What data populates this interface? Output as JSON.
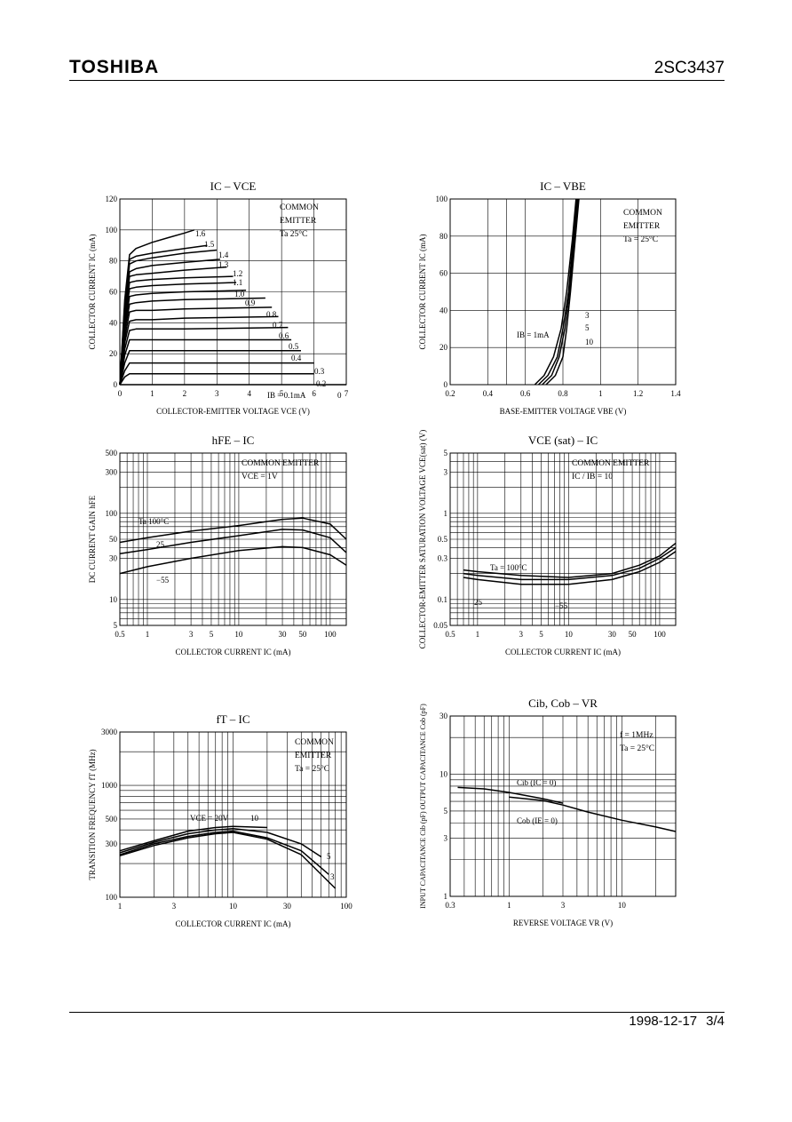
{
  "header": {
    "logo": "TOSHIBA",
    "part_number": "2SC3437"
  },
  "footer": {
    "date": "1998-12-17",
    "page": "3/4"
  },
  "chart_data": [
    {
      "id": "ic_vce",
      "type": "line",
      "title": "IC – VCE",
      "xlabel": "COLLECTOR-EMITTER VOLTAGE   VCE   (V)",
      "ylabel": "COLLECTOR CURRENT   IC   (mA)",
      "xscale": "linear",
      "yscale": "linear",
      "xlim": [
        0,
        7
      ],
      "ylim": [
        0,
        120
      ],
      "xticks": [
        0,
        1,
        2,
        3,
        4,
        5,
        6,
        7
      ],
      "yticks": [
        0,
        20,
        40,
        60,
        80,
        100,
        120
      ],
      "xgrid": [
        1,
        2,
        3,
        4,
        5,
        6
      ],
      "ygrid": [
        20,
        40,
        60,
        80,
        100
      ],
      "annotation": [
        "COMMON",
        "EMITTER",
        "Ta   25°C"
      ],
      "series": [
        {
          "name": "1.6",
          "x": [
            0,
            0.15,
            0.3,
            0.5,
            1,
            1.5,
            2,
            2.3
          ],
          "y": [
            0,
            55,
            84,
            88,
            92,
            95,
            98,
            100
          ]
        },
        {
          "name": "1.5",
          "x": [
            0,
            0.15,
            0.3,
            0.5,
            1,
            2,
            2.7
          ],
          "y": [
            0,
            52,
            81,
            83,
            85,
            88,
            90
          ]
        },
        {
          "name": "1.4",
          "x": [
            0,
            0.15,
            0.3,
            0.5,
            1,
            2,
            3
          ],
          "y": [
            0,
            50,
            78,
            80,
            82,
            85,
            87
          ]
        },
        {
          "name": "1.3",
          "x": [
            0,
            0.15,
            0.3,
            0.5,
            1,
            2,
            3.1
          ],
          "y": [
            0,
            47,
            73,
            75,
            77,
            79,
            81
          ]
        },
        {
          "name": "1.2",
          "x": [
            0,
            0.15,
            0.3,
            0.5,
            1,
            2,
            3.3
          ],
          "y": [
            0,
            45,
            70,
            71,
            72,
            74,
            76
          ]
        },
        {
          "name": "1.1",
          "x": [
            0,
            0.15,
            0.3,
            0.5,
            1,
            2,
            3.5
          ],
          "y": [
            0,
            43,
            66,
            67,
            68,
            69,
            70
          ]
        },
        {
          "name": "1.0",
          "x": [
            0,
            0.15,
            0.3,
            0.5,
            1,
            2,
            3.6
          ],
          "y": [
            0,
            40,
            62,
            63,
            64,
            65,
            66
          ]
        },
        {
          "name": "0.9",
          "x": [
            0,
            0.15,
            0.3,
            0.5,
            1,
            2,
            3.9
          ],
          "y": [
            0,
            37,
            57,
            58,
            59,
            60,
            61
          ]
        },
        {
          "name": "0.8",
          "x": [
            0,
            0.15,
            0.3,
            0.5,
            1,
            2,
            4.5
          ],
          "y": [
            0,
            34,
            52,
            53,
            54,
            55,
            56
          ]
        },
        {
          "name": "0.7",
          "x": [
            0,
            0.15,
            0.3,
            0.5,
            1,
            2,
            4.7
          ],
          "y": [
            0,
            30,
            47,
            48,
            48,
            49,
            50
          ]
        },
        {
          "name": "0.6",
          "x": [
            0,
            0.15,
            0.3,
            0.5,
            1,
            2,
            4.9
          ],
          "y": [
            0,
            27,
            41,
            42,
            42,
            43,
            44
          ]
        },
        {
          "name": "0.5",
          "x": [
            0,
            0.15,
            0.3,
            0.5,
            1,
            2,
            5.2
          ],
          "y": [
            0,
            23,
            35,
            36,
            36,
            36,
            37
          ]
        },
        {
          "name": "0.4",
          "x": [
            0,
            0.15,
            0.3,
            0.5,
            1,
            2,
            5.3
          ],
          "y": [
            0,
            19,
            29,
            29,
            29,
            29,
            29
          ]
        },
        {
          "name": "0.3",
          "x": [
            0,
            0.15,
            0.3,
            0.5,
            1,
            2,
            5.6
          ],
          "y": [
            0,
            14,
            22,
            22,
            22,
            22,
            22
          ]
        },
        {
          "name": "0.2",
          "x": [
            0,
            0.15,
            0.3,
            0.5,
            1,
            2,
            6
          ],
          "y": [
            0,
            9,
            14,
            14,
            14,
            14,
            14
          ]
        },
        {
          "name": "IB = 0.1mA",
          "x": [
            0,
            0.15,
            0.3,
            0.5,
            1,
            2,
            6
          ],
          "y": [
            0,
            5,
            7,
            7,
            7,
            7,
            7
          ]
        },
        {
          "name": "0",
          "x": [
            0,
            7
          ],
          "y": [
            0,
            0
          ]
        }
      ]
    },
    {
      "id": "ic_vbe",
      "type": "line",
      "title": "IC – VBE",
      "xlabel": "BASE-EMITTER VOLTAGE   VBE   (V)",
      "ylabel": "COLLECTOR CURRENT   IC   (mA)",
      "xscale": "linear",
      "yscale": "linear",
      "xlim": [
        0.2,
        1.4
      ],
      "ylim": [
        0,
        100
      ],
      "xticks": [
        0.2,
        0.4,
        0.6,
        0.8,
        1.0,
        1.2,
        1.4
      ],
      "ytick_labels": [
        "0",
        "20",
        "40",
        "60",
        "80",
        "100"
      ],
      "yticks": [
        0,
        20,
        40,
        60,
        80,
        100
      ],
      "xgrid": [
        0.4,
        0.5,
        0.6,
        0.8,
        1.0,
        1.2
      ],
      "ygrid": [
        20,
        40,
        60,
        80
      ],
      "annotation": [
        "COMMON",
        "EMITTER",
        "Ta = 25°C"
      ],
      "series": [
        {
          "name": "IB = 1mA",
          "x": [
            0.65,
            0.7,
            0.75,
            0.79,
            0.82,
            0.85,
            0.87
          ],
          "y": [
            0,
            5,
            15,
            30,
            50,
            78,
            100
          ]
        },
        {
          "name": "3",
          "x": [
            0.67,
            0.72,
            0.77,
            0.8,
            0.83,
            0.855,
            0.875
          ],
          "y": [
            0,
            5,
            15,
            30,
            50,
            78,
            100
          ]
        },
        {
          "name": "5",
          "x": [
            0.69,
            0.74,
            0.78,
            0.81,
            0.835,
            0.86,
            0.88
          ],
          "y": [
            0,
            5,
            15,
            30,
            50,
            78,
            100
          ]
        },
        {
          "name": "10",
          "x": [
            0.71,
            0.76,
            0.8,
            0.82,
            0.84,
            0.865,
            0.885
          ],
          "y": [
            0,
            5,
            15,
            30,
            50,
            78,
            100
          ]
        }
      ]
    },
    {
      "id": "hfe_ic",
      "type": "line",
      "title": "hFE – IC",
      "xlabel": "COLLECTOR CURRENT   IC   (mA)",
      "ylabel": "DC CURRENT GAIN   hFE",
      "xscale": "log",
      "yscale": "log",
      "xlim": [
        0.5,
        150
      ],
      "ylim": [
        5,
        500
      ],
      "xtick_labels": [
        "0.5",
        "1",
        "3",
        "5",
        "10",
        "30",
        "50",
        "100"
      ],
      "xticks": [
        0.5,
        1,
        3,
        5,
        10,
        30,
        50,
        100
      ],
      "ytick_labels": [
        "5",
        "10",
        "30",
        "50",
        "100",
        "300",
        "500"
      ],
      "yticks": [
        5,
        10,
        30,
        50,
        100,
        300,
        500
      ],
      "annotation": [
        "COMMON EMITTER",
        "VCE = 1V"
      ],
      "series": [
        {
          "name": "Ta   100°C",
          "x": [
            0.5,
            1,
            3,
            10,
            30,
            50,
            100,
            150
          ],
          "y": [
            46,
            52,
            62,
            72,
            85,
            88,
            75,
            50
          ]
        },
        {
          "name": "25",
          "x": [
            0.5,
            1,
            3,
            10,
            30,
            50,
            100,
            150
          ],
          "y": [
            34,
            38,
            46,
            55,
            65,
            64,
            52,
            35
          ]
        },
        {
          "name": "−55",
          "x": [
            0.5,
            1,
            3,
            10,
            30,
            50,
            100,
            150
          ],
          "y": [
            20,
            24,
            30,
            37,
            41,
            40,
            33,
            25
          ]
        }
      ]
    },
    {
      "id": "vcesat_ic",
      "type": "line",
      "title": "VCE (sat) – IC",
      "xlabel": "COLLECTOR CURRENT   IC   (mA)",
      "ylabel": "COLLECTOR-EMITTER SATURATION VOLTAGE   VCE(sat)   (V)",
      "xscale": "log",
      "yscale": "log",
      "xlim": [
        0.5,
        150
      ],
      "ylim": [
        0.05,
        5
      ],
      "xtick_labels": [
        "0.5",
        "1",
        "3",
        "5",
        "10",
        "30",
        "50",
        "100"
      ],
      "xticks": [
        0.5,
        1,
        3,
        5,
        10,
        30,
        50,
        100
      ],
      "ytick_labels": [
        "0.05",
        "0.1",
        "0.3",
        "0.5",
        "1",
        "3",
        "5"
      ],
      "yticks": [
        0.05,
        0.1,
        0.3,
        0.5,
        1,
        3,
        5
      ],
      "annotation": [
        "COMMON EMITTER",
        "IC / IB = 10"
      ],
      "series": [
        {
          "name": "Ta = 100°C",
          "x": [
            0.7,
            1,
            3,
            10,
            30,
            60,
            100,
            150
          ],
          "y": [
            0.22,
            0.21,
            0.19,
            0.18,
            0.2,
            0.25,
            0.32,
            0.45
          ]
        },
        {
          "name": "25",
          "x": [
            0.7,
            1,
            3,
            10,
            30,
            60,
            100,
            150
          ],
          "y": [
            0.2,
            0.19,
            0.17,
            0.17,
            0.19,
            0.23,
            0.3,
            0.4
          ]
        },
        {
          "name": "−55",
          "x": [
            0.7,
            1,
            3,
            10,
            30,
            60,
            100,
            150
          ],
          "y": [
            0.18,
            0.17,
            0.15,
            0.15,
            0.17,
            0.21,
            0.27,
            0.36
          ]
        }
      ]
    },
    {
      "id": "ft_ic",
      "type": "line",
      "title": "fT – IC",
      "xlabel": "COLLECTOR CURRENT   IC   (mA)",
      "ylabel": "TRANSITION FREQUENCY   fT   (MHz)",
      "xscale": "log",
      "yscale": "log",
      "xlim": [
        1,
        100
      ],
      "ylim": [
        100,
        3000
      ],
      "xtick_labels": [
        "1",
        "3",
        "10",
        "30",
        "100"
      ],
      "xticks": [
        1,
        3,
        10,
        30,
        100
      ],
      "ytick_labels": [
        "100",
        "300",
        "500",
        "1000",
        "3000"
      ],
      "yticks": [
        100,
        300,
        500,
        1000,
        3000
      ],
      "annotation": [
        "COMMON",
        "EMITTER",
        "Ta = 25°C"
      ],
      "series": [
        {
          "name": "VCE = 20V",
          "x": [
            1,
            2,
            4,
            7,
            10,
            20
          ],
          "y": [
            260,
            320,
            390,
            420,
            430,
            420
          ]
        },
        {
          "name": "10",
          "x": [
            1,
            2,
            4,
            7,
            10,
            20,
            40,
            60
          ],
          "y": [
            250,
            310,
            370,
            400,
            410,
            380,
            300,
            230
          ]
        },
        {
          "name": "5",
          "x": [
            1,
            2,
            4,
            7,
            10,
            20,
            40,
            70
          ],
          "y": [
            240,
            300,
            350,
            380,
            390,
            340,
            260,
            160
          ]
        },
        {
          "name": "3",
          "x": [
            1,
            2,
            4,
            7,
            10,
            20,
            40,
            80
          ],
          "y": [
            235,
            290,
            340,
            370,
            380,
            330,
            240,
            120
          ]
        }
      ]
    },
    {
      "id": "cib_cob_vr",
      "type": "line",
      "title": "Cib, Cob – VR",
      "xlabel": "REVERSE VOLTAGE   VR   (V)",
      "ylabel": "INPUT CAPACITANCE   Cib   (pF)   OUTPUT CAPACITANCE   Cob   (pF)",
      "xscale": "log",
      "yscale": "log",
      "xlim": [
        0.3,
        30
      ],
      "ylim": [
        1,
        30
      ],
      "xtick_labels": [
        "0.3",
        "1",
        "3",
        "10"
      ],
      "xticks": [
        0.3,
        1,
        3,
        10
      ],
      "ytick_labels": [
        "1",
        "3",
        "5",
        "10",
        "30"
      ],
      "yticks": [
        1,
        3,
        5,
        10,
        30
      ],
      "annotation": [
        "f = 1MHz",
        "Ta = 25°C"
      ],
      "series": [
        {
          "name": "Cib (IC = 0)",
          "x": [
            0.35,
            0.6,
            1,
            2,
            3
          ],
          "y": [
            7.8,
            7.6,
            7.1,
            6.3,
            5.8
          ]
        },
        {
          "name": "Cob (IE = 0)",
          "x": [
            1,
            2,
            3,
            5,
            10,
            20,
            30
          ],
          "y": [
            6.5,
            6.1,
            5.6,
            4.9,
            4.2,
            3.7,
            3.4
          ]
        }
      ]
    }
  ]
}
